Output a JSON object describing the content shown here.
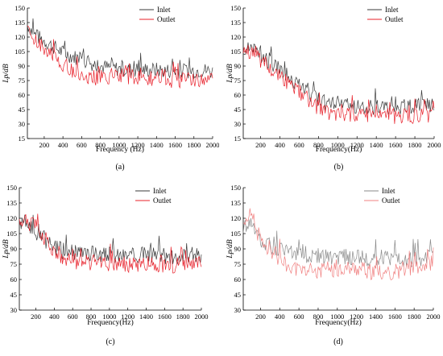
{
  "colors": {
    "inlet": "#3a3a3a",
    "outlet": "#e8202a",
    "inlet_light": "#8a8a8a",
    "outlet_light": "#f08080"
  },
  "chart_data": [
    {
      "type": "line",
      "panel_label": "(a)",
      "xlabel": "Frequency (Hz)",
      "ylabel": "Lp/dB",
      "xlim": [
        20,
        2000
      ],
      "ylim": [
        15,
        150
      ],
      "xticks": [
        200,
        400,
        600,
        800,
        1000,
        1200,
        1400,
        1600,
        1800,
        2000
      ],
      "yticks": [
        15,
        30,
        45,
        60,
        75,
        90,
        105,
        120,
        135,
        150
      ],
      "legend": "top-right",
      "grid": false,
      "series": [
        {
          "name": "Inlet",
          "color": "#3a3a3a",
          "x": [
            20,
            100,
            200,
            300,
            400,
            500,
            600,
            700,
            800,
            900,
            1000,
            1100,
            1200,
            1300,
            1400,
            1500,
            1600,
            1700,
            1800,
            1900,
            2000
          ],
          "y": [
            133,
            122,
            116,
            110,
            104,
            100,
            97,
            93,
            90,
            88,
            87,
            86,
            86,
            86,
            86,
            85,
            85,
            85,
            85,
            86,
            84
          ]
        },
        {
          "name": "Outlet",
          "color": "#e8202a",
          "x": [
            20,
            100,
            200,
            300,
            400,
            500,
            600,
            700,
            800,
            900,
            1000,
            1100,
            1200,
            1300,
            1400,
            1500,
            1600,
            1700,
            1800,
            1900,
            2000
          ],
          "y": [
            128,
            116,
            108,
            100,
            92,
            86,
            80,
            78,
            78,
            79,
            80,
            79,
            78,
            77,
            76,
            76,
            75,
            75,
            76,
            77,
            76
          ]
        }
      ]
    },
    {
      "type": "line",
      "panel_label": "(b)",
      "xlabel": "Frequency(Hz)",
      "ylabel": "Lp/dB",
      "xlim": [
        20,
        2000
      ],
      "ylim": [
        15,
        150
      ],
      "xticks": [
        200,
        400,
        600,
        800,
        1000,
        1200,
        1400,
        1600,
        1800,
        2000
      ],
      "yticks": [
        15,
        30,
        45,
        60,
        75,
        90,
        105,
        120,
        135,
        150
      ],
      "legend": "top-right",
      "grid": false,
      "series": [
        {
          "name": "Inlet",
          "color": "#3a3a3a",
          "x": [
            20,
            100,
            200,
            300,
            400,
            500,
            600,
            700,
            800,
            900,
            1000,
            1100,
            1200,
            1300,
            1400,
            1500,
            1600,
            1700,
            1800,
            1900,
            2000
          ],
          "y": [
            105,
            110,
            100,
            93,
            86,
            78,
            70,
            62,
            55,
            51,
            50,
            49,
            48,
            48,
            48,
            47,
            47,
            48,
            48,
            49,
            50
          ]
        },
        {
          "name": "Outlet",
          "color": "#e8202a",
          "x": [
            20,
            100,
            200,
            300,
            400,
            500,
            600,
            700,
            800,
            900,
            1000,
            1100,
            1200,
            1300,
            1400,
            1500,
            1600,
            1700,
            1800,
            1900,
            2000
          ],
          "y": [
            102,
            105,
            96,
            88,
            80,
            71,
            63,
            55,
            46,
            42,
            41,
            40,
            40,
            39,
            39,
            39,
            38,
            38,
            38,
            38,
            39
          ]
        }
      ]
    },
    {
      "type": "line",
      "panel_label": "(c)",
      "xlabel": "Frequency(Hz)",
      "ylabel": "Lp/dB",
      "xlim": [
        20,
        2000
      ],
      "ylim": [
        30,
        150
      ],
      "xticks": [
        200,
        400,
        600,
        800,
        1000,
        1200,
        1400,
        1600,
        1800,
        2000
      ],
      "yticks": [
        30,
        45,
        60,
        75,
        90,
        105,
        120,
        135,
        150
      ],
      "legend": "top-right",
      "grid": false,
      "series": [
        {
          "name": "Inlet",
          "color": "#3a3a3a",
          "x": [
            20,
            100,
            200,
            300,
            400,
            500,
            600,
            700,
            800,
            900,
            1000,
            1100,
            1200,
            1300,
            1400,
            1500,
            1600,
            1700,
            1800,
            1900,
            2000
          ],
          "y": [
            118,
            115,
            105,
            98,
            92,
            88,
            86,
            85,
            85,
            85,
            84,
            84,
            84,
            84,
            84,
            83,
            83,
            83,
            84,
            84,
            84
          ]
        },
        {
          "name": "Outlet",
          "color": "#e8202a",
          "x": [
            20,
            100,
            200,
            300,
            400,
            500,
            600,
            700,
            800,
            900,
            1000,
            1100,
            1200,
            1300,
            1400,
            1500,
            1600,
            1700,
            1800,
            1900,
            2000
          ],
          "y": [
            120,
            116,
            112,
            100,
            88,
            82,
            78,
            77,
            77,
            76,
            76,
            76,
            75,
            75,
            75,
            75,
            74,
            74,
            74,
            75,
            75
          ]
        }
      ]
    },
    {
      "type": "line",
      "panel_label": "(d)",
      "xlabel": "Frequency(Hz)",
      "ylabel": "Lp/dB",
      "xlim": [
        20,
        2000
      ],
      "ylim": [
        30,
        150
      ],
      "xticks": [
        200,
        400,
        600,
        800,
        1000,
        1200,
        1400,
        1600,
        1800,
        2000
      ],
      "yticks": [
        30,
        45,
        60,
        75,
        90,
        105,
        120,
        135,
        150
      ],
      "legend": "top-right",
      "grid": false,
      "series": [
        {
          "name": "Inlet",
          "color": "#8a8a8a",
          "x": [
            20,
            100,
            200,
            300,
            400,
            500,
            600,
            700,
            800,
            900,
            1000,
            1100,
            1200,
            1300,
            1400,
            1500,
            1600,
            1700,
            1800,
            1900,
            2000
          ],
          "y": [
            112,
            118,
            98,
            92,
            88,
            86,
            84,
            83,
            83,
            82,
            82,
            82,
            81,
            81,
            80,
            80,
            80,
            80,
            80,
            81,
            81
          ]
        },
        {
          "name": "Outlet",
          "color": "#f08080",
          "x": [
            20,
            100,
            200,
            300,
            400,
            500,
            600,
            700,
            800,
            900,
            1000,
            1100,
            1200,
            1300,
            1400,
            1500,
            1600,
            1700,
            1800,
            1900,
            2000
          ],
          "y": [
            118,
            125,
            98,
            90,
            80,
            74,
            68,
            68,
            69,
            70,
            70,
            70,
            70,
            69,
            66,
            66,
            68,
            70,
            72,
            74,
            76
          ]
        }
      ]
    }
  ]
}
